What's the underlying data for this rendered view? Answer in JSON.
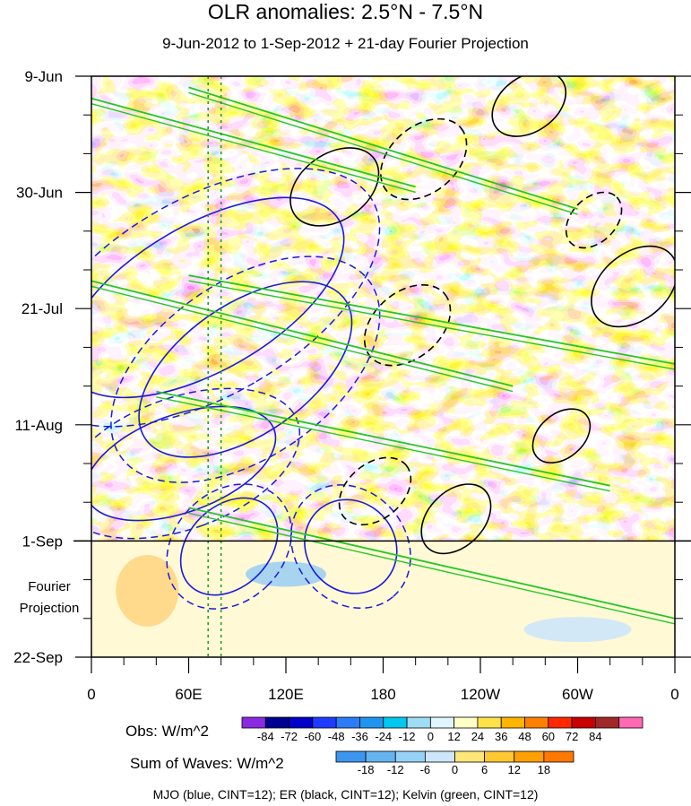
{
  "chart_data": {
    "type": "heatmap",
    "title": "OLR anomalies: 2.5°N - 7.5°N",
    "subtitle": "9-Jun-2012 to 1-Sep-2012 + 21-day Fourier Projection",
    "x_tick_labels": [
      "0",
      "60E",
      "120E",
      "180",
      "120W",
      "60W",
      "0"
    ],
    "x_ticks_lon": [
      0,
      60,
      120,
      180,
      240,
      300,
      360
    ],
    "y_tick_labels": [
      "9-Jun",
      "30-Jun",
      "21-Jul",
      "11-Aug",
      "1-Sep",
      "22-Sep"
    ],
    "y_ticks_day": [
      0,
      21,
      42,
      63,
      84,
      105
    ],
    "projection_label": [
      "Fourier",
      "Projection"
    ],
    "obs_end_day": 84,
    "total_days": 105,
    "obs_colorbar": {
      "label": "Obs: W/m^2",
      "levels": [
        "-84",
        "-72",
        "-60",
        "-48",
        "-36",
        "-24",
        "-12",
        "0",
        "12",
        "24",
        "36",
        "48",
        "60",
        "72",
        "84"
      ],
      "colors": [
        "#8a2be2",
        "#000090",
        "#0000c8",
        "#1e3cff",
        "#2a7df7",
        "#1e96f0",
        "#00c8f0",
        "#a0dcf5",
        "#e0f5ff",
        "#ffffc8",
        "#ffe24a",
        "#ffb400",
        "#ff8000",
        "#ff2800",
        "#c80000",
        "#a02828",
        "#ff69b4"
      ]
    },
    "waves_colorbar": {
      "label": "Sum of Waves: W/m^2",
      "levels": [
        "-18",
        "-12",
        "-6",
        "0",
        "6",
        "12",
        "18"
      ],
      "colors": [
        "#3c96f0",
        "#64b4f0",
        "#96d2f5",
        "#cde6fa",
        "#ffe678",
        "#ffc832",
        "#ffa000",
        "#ff7800"
      ]
    },
    "footer": "MJO (blue, CINT=12); ER (black, CINT=12); Kelvin (green, CINT=12)",
    "mjo_features": [
      {
        "lon": 70,
        "day": 40,
        "lon_len": 45,
        "day_len": 28,
        "angle": 60
      },
      {
        "lon": 95,
        "day": 53,
        "lon_len": 40,
        "day_len": 22,
        "angle": 55
      },
      {
        "lon": 55,
        "day": 70,
        "lon_len": 30,
        "day_len": 18,
        "angle": 70
      },
      {
        "lon": 85,
        "day": 85,
        "lon_len": 25,
        "day_len": 10,
        "angle": 45
      },
      {
        "lon": 160,
        "day": 85,
        "lon_len": 30,
        "day_len": 8,
        "angle": 50
      }
    ],
    "er_features": [
      {
        "lon": 150,
        "day": 20,
        "lon_len": 30,
        "day_len": 6,
        "angle": -35
      },
      {
        "lon": 205,
        "day": 15,
        "lon_len": 30,
        "day_len": 6,
        "angle": -40
      },
      {
        "lon": 270,
        "day": 5,
        "lon_len": 25,
        "day_len": 5,
        "angle": -35
      },
      {
        "lon": 195,
        "day": 45,
        "lon_len": 30,
        "day_len": 6,
        "angle": -40
      },
      {
        "lon": 290,
        "day": 65,
        "lon_len": 20,
        "day_len": 4,
        "angle": -40
      },
      {
        "lon": 175,
        "day": 75,
        "lon_len": 25,
        "day_len": 5,
        "angle": -40
      },
      {
        "lon": 225,
        "day": 80,
        "lon_len": 25,
        "day_len": 5,
        "angle": -45
      },
      {
        "lon": 310,
        "day": 26,
        "lon_len": 20,
        "day_len": 4,
        "angle": -45
      },
      {
        "lon": 335,
        "day": 38,
        "lon_len": 30,
        "day_len": 6,
        "angle": -40
      }
    ],
    "kelvin_features": [
      {
        "lon_start": 0,
        "day_start": 4,
        "lon_end": 200,
        "day_end": 20
      },
      {
        "lon_start": 60,
        "day_start": 2,
        "lon_end": 300,
        "day_end": 24
      },
      {
        "lon_start": 0,
        "day_start": 37,
        "lon_end": 260,
        "day_end": 56
      },
      {
        "lon_start": 60,
        "day_start": 36,
        "lon_end": 360,
        "day_end": 52
      },
      {
        "lon_start": 40,
        "day_start": 57,
        "lon_end": 320,
        "day_end": 74
      },
      {
        "lon_start": 60,
        "day_start": 78,
        "lon_end": 360,
        "day_end": 98
      }
    ]
  }
}
